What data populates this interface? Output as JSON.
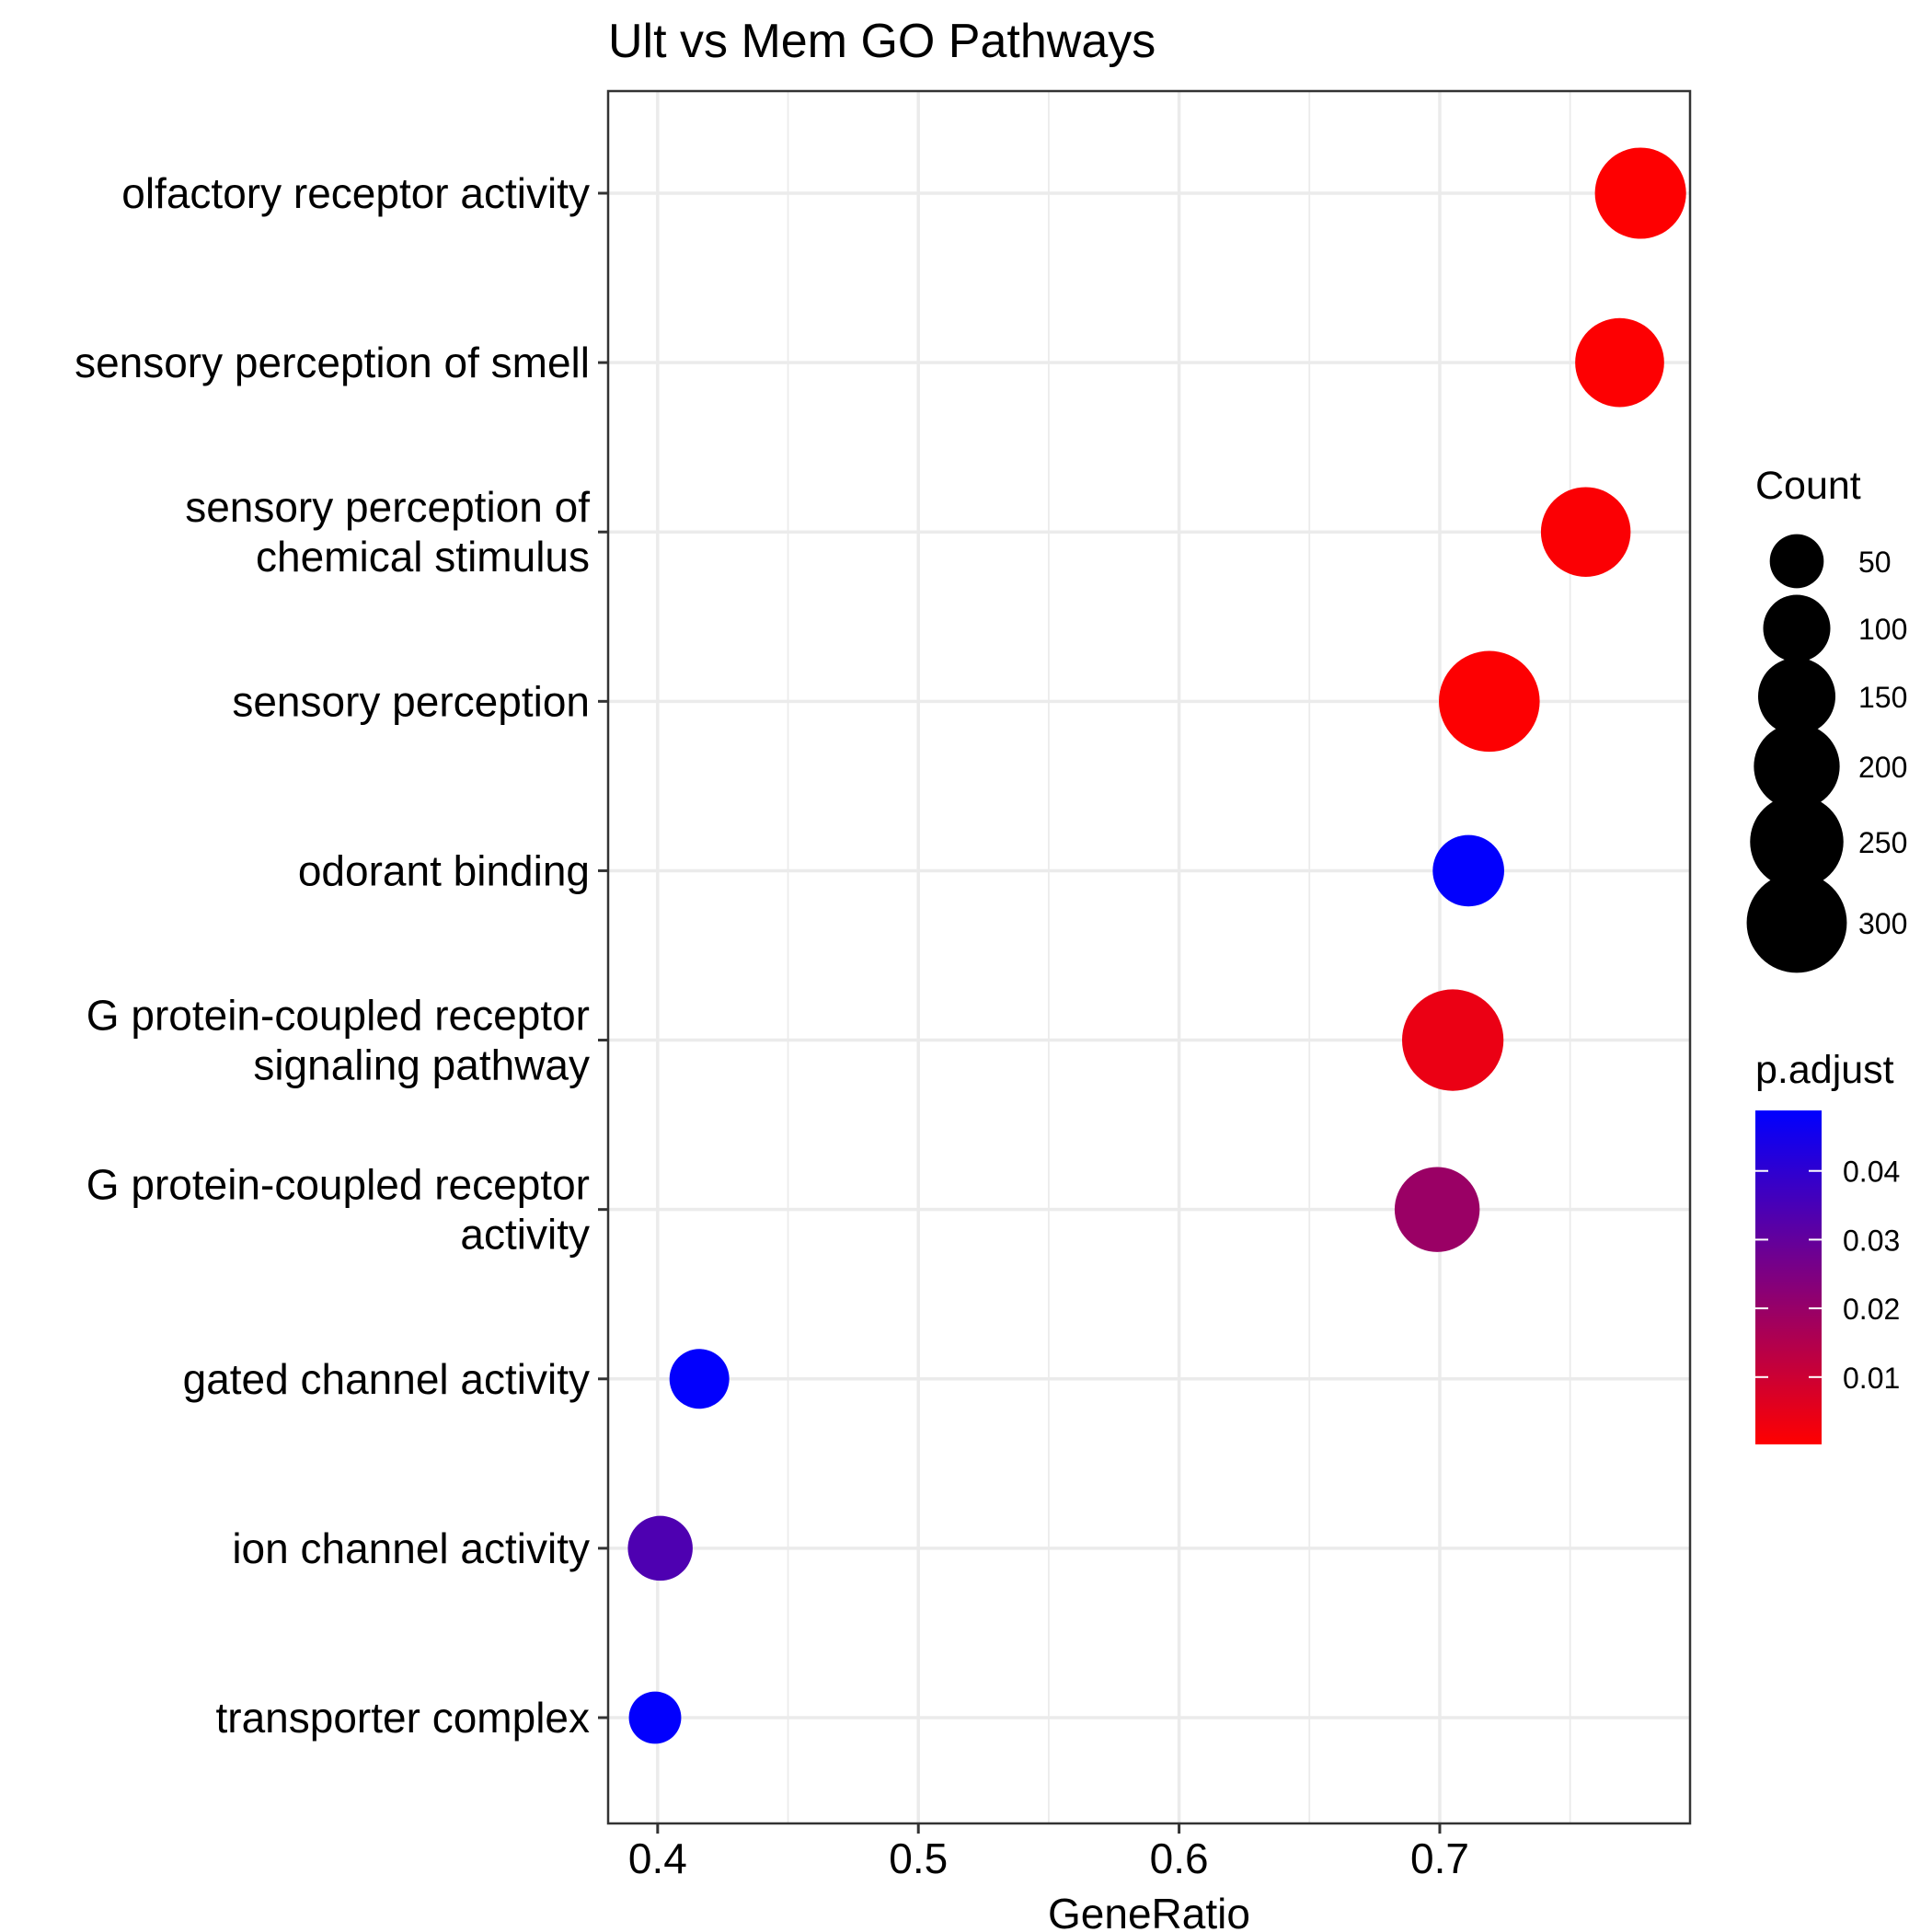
{
  "chart_data": {
    "type": "scatter",
    "title": "Ult vs Mem GO Pathways",
    "xlabel": "GeneRatio",
    "ylabel": "",
    "xlim": [
      0.381,
      0.796
    ],
    "xticks": [
      0.4,
      0.5,
      0.6,
      0.7
    ],
    "xtick_labels": [
      "0.4",
      "0.5",
      "0.6",
      "0.7"
    ],
    "grid": true,
    "legend_position": "right",
    "categories": [
      {
        "label_lines": [
          "olfactory receptor activity"
        ],
        "x": 0.777,
        "count": 235,
        "p_adjust": 0.0003
      },
      {
        "label_lines": [
          "sensory perception of smell"
        ],
        "x": 0.769,
        "count": 220,
        "p_adjust": 0.0005
      },
      {
        "label_lines": [
          "sensory perception of",
          "chemical stimulus"
        ],
        "x": 0.756,
        "count": 225,
        "p_adjust": 0.001
      },
      {
        "label_lines": [
          "sensory perception"
        ],
        "x": 0.719,
        "count": 305,
        "p_adjust": 0.0006
      },
      {
        "label_lines": [
          "odorant binding"
        ],
        "x": 0.711,
        "count": 120,
        "p_adjust": 0.0485
      },
      {
        "label_lines": [
          "G protein-coupled receptor",
          "signaling pathway"
        ],
        "x": 0.705,
        "count": 310,
        "p_adjust": 0.004
      },
      {
        "label_lines": [
          "G protein-coupled receptor",
          "activity"
        ],
        "x": 0.699,
        "count": 195,
        "p_adjust": 0.0195
      },
      {
        "label_lines": [
          "gated channel activity"
        ],
        "x": 0.416,
        "count": 70,
        "p_adjust": 0.0485
      },
      {
        "label_lines": [
          "ion channel activity"
        ],
        "x": 0.401,
        "count": 90,
        "p_adjust": 0.034
      },
      {
        "label_lines": [
          "transporter complex"
        ],
        "x": 0.399,
        "count": 45,
        "p_adjust": 0.0485
      }
    ],
    "size_legend": {
      "title": "Count",
      "values": [
        50,
        100,
        150,
        200,
        250,
        300
      ],
      "labels": [
        "50",
        "100",
        "150",
        "200",
        "250",
        "300"
      ]
    },
    "color_legend": {
      "title": "p.adjust",
      "range": [
        0.0002,
        0.0488
      ],
      "ticks": [
        0.04,
        0.03,
        0.02,
        0.01
      ],
      "tick_labels": [
        "0.04",
        "0.03",
        "0.02",
        "0.01"
      ],
      "low_color": "#ff0000",
      "high_color": "#0000ff"
    }
  }
}
